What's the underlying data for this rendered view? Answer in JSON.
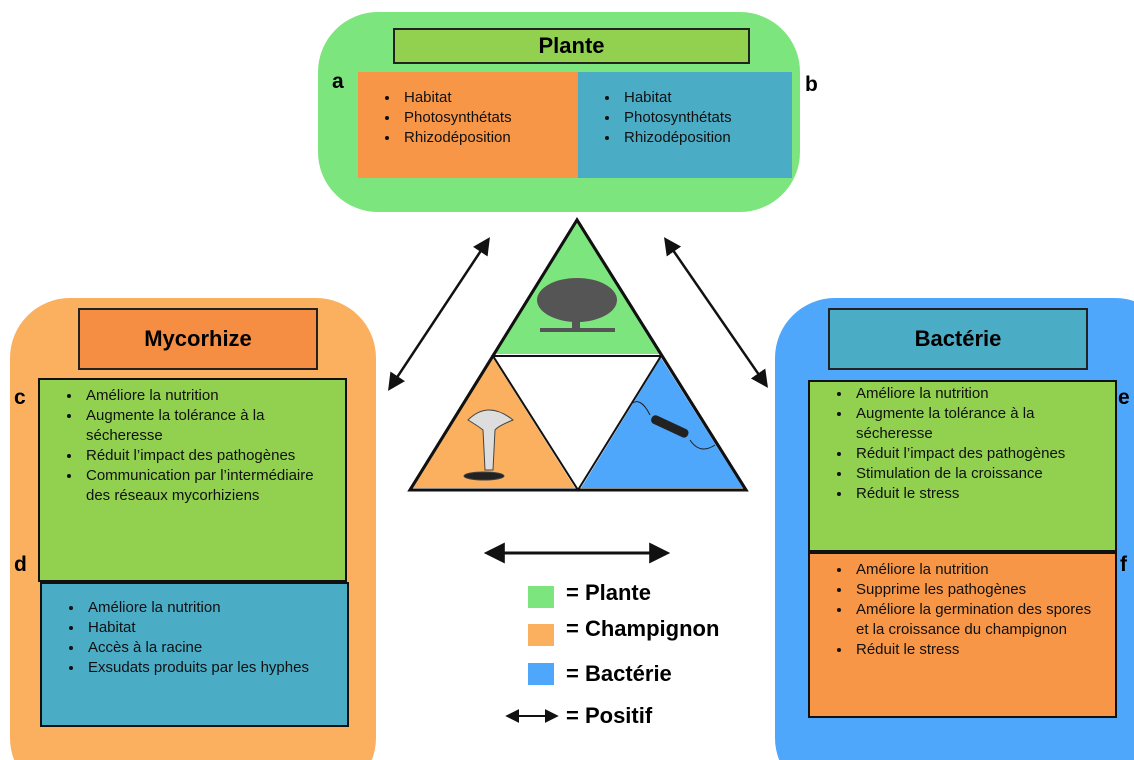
{
  "plant": {
    "title": "Plante",
    "letter_a": "a",
    "letter_b": "b",
    "box_a": [
      "Habitat",
      "Photosynthétats",
      "Rhizodéposition"
    ],
    "box_b": [
      "Habitat",
      "Photosynthétats",
      "Rhizodéposition"
    ]
  },
  "mycorhize": {
    "title": "Mycorhize",
    "letter_c": "c",
    "letter_d": "d",
    "box_c": [
      "Améliore la nutrition",
      "Augmente la tolérance à la sécheresse",
      "Réduit l’impact des pathogènes",
      "Communication par l’intermédiaire des réseaux mycorhiziens"
    ],
    "box_d": [
      "Améliore la nutrition",
      "Habitat",
      "Accès à la racine",
      "Exsudats produits par les hyphes"
    ]
  },
  "bacterie": {
    "title": "Bactérie",
    "letter_e": "e",
    "letter_f": "f",
    "box_e": [
      "Améliore la nutrition",
      "Augmente la tolérance à la sécheresse",
      "Réduit l’impact des pathogènes",
      "Stimulation de la croissance",
      "Réduit le  stress"
    ],
    "box_f": [
      "Améliore la nutrition",
      "Supprime les pathogènes",
      "Améliore la germination des spores et la croissance du champignon",
      "Réduit le  stress"
    ]
  },
  "legend": {
    "items": [
      "= Plante",
      "= Champignon",
      "= Bactérie",
      "= Positif"
    ]
  }
}
